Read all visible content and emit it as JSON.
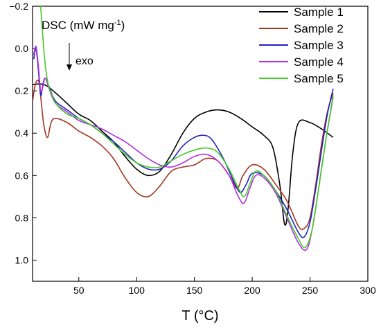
{
  "chart_data": {
    "type": "line",
    "title": "",
    "xlabel": "T (°C)",
    "ylabel": "",
    "xlim": [
      10,
      300
    ],
    "ylim": [
      -0.2,
      1.1
    ],
    "y_inverted": true,
    "grid": false,
    "legend_position": "top-right",
    "x_ticks": [
      50,
      100,
      150,
      200,
      250,
      300
    ],
    "x_tick_labels": [
      "50",
      "100",
      "150",
      "200",
      "250",
      "300"
    ],
    "y_ticks": [
      -0.2,
      0.0,
      0.2,
      0.4,
      0.6,
      0.8,
      1.0
    ],
    "y_tick_labels": [
      "−0.2",
      "0.0",
      "0.2",
      "0.4",
      "0.6",
      "0.8",
      "1.0"
    ],
    "annotations": {
      "dsc_label": "DSC (mW mg",
      "dsc_superscript": "-1",
      "dsc_close": ")",
      "exo_label": "exo"
    },
    "series": [
      {
        "name": "Sample 1",
        "color": "#000000",
        "points": [
          [
            10,
            0.17
          ],
          [
            20,
            0.17
          ],
          [
            30,
            0.21
          ],
          [
            40,
            0.26
          ],
          [
            50,
            0.31
          ],
          [
            60,
            0.34
          ],
          [
            70,
            0.39
          ],
          [
            80,
            0.44
          ],
          [
            90,
            0.51
          ],
          [
            100,
            0.57
          ],
          [
            110,
            0.6
          ],
          [
            120,
            0.58
          ],
          [
            130,
            0.5
          ],
          [
            140,
            0.4
          ],
          [
            150,
            0.33
          ],
          [
            160,
            0.3
          ],
          [
            170,
            0.29
          ],
          [
            180,
            0.3
          ],
          [
            190,
            0.33
          ],
          [
            200,
            0.37
          ],
          [
            210,
            0.41
          ],
          [
            218,
            0.47
          ],
          [
            224,
            0.65
          ],
          [
            228,
            0.83
          ],
          [
            231,
            0.76
          ],
          [
            235,
            0.5
          ],
          [
            240,
            0.35
          ],
          [
            250,
            0.35
          ],
          [
            260,
            0.38
          ],
          [
            270,
            0.42
          ]
        ]
      },
      {
        "name": "Sample 2",
        "color": "#a33420",
        "points": [
          [
            10,
            0.25
          ],
          [
            12,
            0.18
          ],
          [
            14,
            0.15
          ],
          [
            16,
            0.17
          ],
          [
            18,
            0.28
          ],
          [
            20,
            0.37
          ],
          [
            23,
            0.42
          ],
          [
            26,
            0.35
          ],
          [
            30,
            0.33
          ],
          [
            40,
            0.35
          ],
          [
            50,
            0.39
          ],
          [
            60,
            0.42
          ],
          [
            70,
            0.46
          ],
          [
            80,
            0.52
          ],
          [
            90,
            0.61
          ],
          [
            100,
            0.68
          ],
          [
            110,
            0.7
          ],
          [
            120,
            0.65
          ],
          [
            130,
            0.58
          ],
          [
            140,
            0.56
          ],
          [
            150,
            0.55
          ],
          [
            160,
            0.52
          ],
          [
            170,
            0.53
          ],
          [
            180,
            0.6
          ],
          [
            187,
            0.66
          ],
          [
            192,
            0.6
          ],
          [
            200,
            0.55
          ],
          [
            210,
            0.57
          ],
          [
            220,
            0.64
          ],
          [
            230,
            0.72
          ],
          [
            240,
            0.84
          ],
          [
            245,
            0.85
          ],
          [
            250,
            0.8
          ],
          [
            255,
            0.64
          ],
          [
            260,
            0.45
          ],
          [
            265,
            0.3
          ],
          [
            270,
            0.21
          ]
        ]
      },
      {
        "name": "Sample 3",
        "color": "#2020c0",
        "points": [
          [
            11,
            0.05
          ],
          [
            13,
            0.0
          ],
          [
            15,
            0.1
          ],
          [
            17,
            0.22
          ],
          [
            19,
            0.17
          ],
          [
            21,
            0.14
          ],
          [
            25,
            0.19
          ],
          [
            30,
            0.25
          ],
          [
            40,
            0.29
          ],
          [
            50,
            0.33
          ],
          [
            60,
            0.36
          ],
          [
            70,
            0.4
          ],
          [
            80,
            0.44
          ],
          [
            90,
            0.49
          ],
          [
            100,
            0.54
          ],
          [
            110,
            0.57
          ],
          [
            120,
            0.57
          ],
          [
            130,
            0.53
          ],
          [
            140,
            0.46
          ],
          [
            150,
            0.42
          ],
          [
            158,
            0.41
          ],
          [
            165,
            0.43
          ],
          [
            175,
            0.52
          ],
          [
            185,
            0.64
          ],
          [
            190,
            0.68
          ],
          [
            195,
            0.64
          ],
          [
            200,
            0.59
          ],
          [
            210,
            0.6
          ],
          [
            220,
            0.67
          ],
          [
            230,
            0.76
          ],
          [
            240,
            0.87
          ],
          [
            245,
            0.89
          ],
          [
            250,
            0.82
          ],
          [
            255,
            0.66
          ],
          [
            260,
            0.48
          ],
          [
            265,
            0.31
          ],
          [
            270,
            0.19
          ]
        ]
      },
      {
        "name": "Sample 4",
        "color": "#b030e0",
        "points": [
          [
            11,
            0.03
          ],
          [
            13,
            -0.01
          ],
          [
            15,
            0.08
          ],
          [
            17,
            0.2
          ],
          [
            19,
            0.18
          ],
          [
            21,
            0.14
          ],
          [
            25,
            0.2
          ],
          [
            30,
            0.26
          ],
          [
            40,
            0.3
          ],
          [
            50,
            0.34
          ],
          [
            60,
            0.36
          ],
          [
            70,
            0.38
          ],
          [
            80,
            0.41
          ],
          [
            90,
            0.44
          ],
          [
            100,
            0.48
          ],
          [
            110,
            0.52
          ],
          [
            120,
            0.55
          ],
          [
            130,
            0.56
          ],
          [
            140,
            0.54
          ],
          [
            150,
            0.51
          ],
          [
            160,
            0.5
          ],
          [
            170,
            0.53
          ],
          [
            180,
            0.6
          ],
          [
            188,
            0.7
          ],
          [
            193,
            0.73
          ],
          [
            198,
            0.66
          ],
          [
            203,
            0.6
          ],
          [
            210,
            0.61
          ],
          [
            220,
            0.68
          ],
          [
            230,
            0.8
          ],
          [
            240,
            0.92
          ],
          [
            247,
            0.95
          ],
          [
            252,
            0.85
          ],
          [
            258,
            0.64
          ],
          [
            264,
            0.42
          ],
          [
            270,
            0.23
          ]
        ]
      },
      {
        "name": "Sample 5",
        "color": "#44cc22",
        "points": [
          [
            17,
            -0.2
          ],
          [
            19,
            -0.05
          ],
          [
            21,
            0.08
          ],
          [
            24,
            0.18
          ],
          [
            27,
            0.22
          ],
          [
            30,
            0.26
          ],
          [
            40,
            0.31
          ],
          [
            50,
            0.33
          ],
          [
            60,
            0.36
          ],
          [
            70,
            0.4
          ],
          [
            80,
            0.45
          ],
          [
            90,
            0.5
          ],
          [
            100,
            0.54
          ],
          [
            110,
            0.56
          ],
          [
            120,
            0.56
          ],
          [
            130,
            0.53
          ],
          [
            140,
            0.5
          ],
          [
            150,
            0.48
          ],
          [
            160,
            0.47
          ],
          [
            170,
            0.49
          ],
          [
            180,
            0.57
          ],
          [
            188,
            0.66
          ],
          [
            193,
            0.7
          ],
          [
            198,
            0.64
          ],
          [
            203,
            0.58
          ],
          [
            210,
            0.6
          ],
          [
            220,
            0.67
          ],
          [
            230,
            0.79
          ],
          [
            240,
            0.9
          ],
          [
            246,
            0.94
          ],
          [
            252,
            0.85
          ],
          [
            258,
            0.64
          ],
          [
            264,
            0.42
          ],
          [
            270,
            0.22
          ]
        ]
      }
    ]
  }
}
